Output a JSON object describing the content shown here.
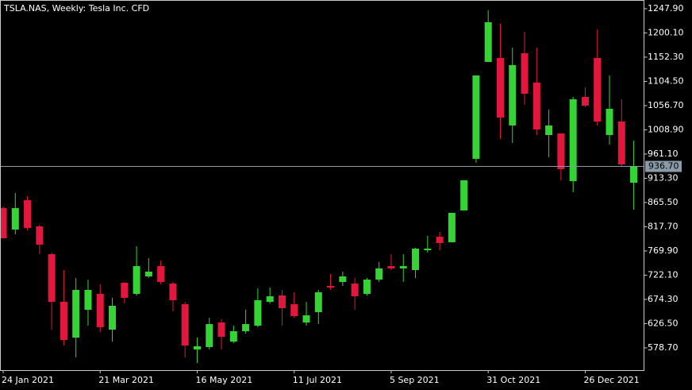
{
  "chart_data": {
    "type": "candlestick",
    "title": "TSLA.NAS, Weekly:  Tesla Inc. CFD",
    "categories": [
      "24 Jan 2021",
      null,
      null,
      null,
      null,
      null,
      null,
      null,
      "21 Mar 2021",
      null,
      null,
      null,
      null,
      null,
      null,
      null,
      "16 May 2021",
      null,
      null,
      null,
      null,
      null,
      null,
      null,
      "11 Jul 2021",
      null,
      null,
      null,
      null,
      null,
      null,
      null,
      "5 Sep 2021",
      null,
      null,
      null,
      null,
      null,
      null,
      null,
      "31 Oct 2021",
      null,
      null,
      null,
      null,
      null,
      null,
      null,
      "26 Dec 2021",
      null,
      null,
      null,
      null
    ],
    "open": [
      854.5,
      812.1,
      870.1,
      818.4,
      763.6,
      669.5,
      599.0,
      653.9,
      685.2,
      614.7,
      707.1,
      685.2,
      719.7,
      740.0,
      705.6,
      664.8,
      575.5,
      580.2,
      628.8,
      591.1,
      611.5,
      622.5,
      669.5,
      682.1,
      664.8,
      628.8,
      649.2,
      700.9,
      708.7,
      705.6,
      685.2,
      713.4,
      740.0,
      735.4,
      732.2,
      771.4,
      798.0,
      787.1,
      849.8,
      951.7,
      1142.9,
      1150.7,
      1017.5,
      1160.1,
      1102.1,
      998.7,
      1001.8,
      907.8,
      1073.9,
      1150.7,
      998.7,
      1025.3,
      904.6
    ],
    "high": [
      857.6,
      884.3,
      878.0,
      821.6,
      766.7,
      732.2,
      716.5,
      713.4,
      704.0,
      677.4,
      708.7,
      779.2,
      755.7,
      751.0,
      708.7,
      669.5,
      599.0,
      638.1,
      635.0,
      622.5,
      653.9,
      696.2,
      697.7,
      693.0,
      688.4,
      669.5,
      693.0,
      724.4,
      729.1,
      716.5,
      716.5,
      747.9,
      763.6,
      763.6,
      776.1,
      799.6,
      807.5,
      845.1,
      909.3,
      1116.2,
      1244.8,
      1218.1,
      1171.1,
      1202.4,
      1171.1,
      1048.8,
      1001.8,
      1073.9,
      1092.7,
      1207.1,
      1116.2,
      1069.2,
      987.7
    ],
    "low": [
      794.9,
      802.8,
      810.6,
      763.6,
      614.7,
      583.3,
      559.8,
      622.5,
      610.0,
      591.1,
      666.4,
      682.0,
      716.5,
      704.0,
      650.7,
      559.8,
      548.8,
      575.5,
      575.5,
      588.0,
      606.8,
      619.4,
      666.4,
      622.5,
      638.1,
      622.5,
      625.6,
      693.0,
      700.9,
      653.9,
      682.0,
      708.7,
      732.2,
      708.7,
      716.5,
      766.7,
      771.4,
      787.1,
      849.8,
      943.8,
      1142.9,
      990.8,
      983.0,
      1058.2,
      998.7,
      954.8,
      909.3,
      885.8,
      1053.5,
      1017.5,
      979.9,
      936.0,
      851.3
    ],
    "close": [
      794.9,
      854.5,
      815.3,
      782.4,
      669.5,
      594.3,
      693.0,
      693.0,
      619.4,
      661.7,
      677.4,
      740.0,
      729.1,
      708.7,
      672.7,
      583.3,
      581.7,
      625.6,
      600.6,
      611.5,
      625.6,
      672.7,
      680.5,
      657.0,
      641.3,
      642.9,
      688.4,
      697.7,
      719.7,
      680.5,
      713.4,
      735.4,
      735.4,
      740.0,
      774.5,
      774.5,
      785.5,
      845.1,
      909.3,
      1116.2,
      1221.2,
      1033.2,
      1136.6,
      1080.2,
      1009.6,
      1017.5,
      931.3,
      1069.2,
      1056.7,
      1025.3,
      1050.4,
      940.7,
      936.7
    ],
    "up_color": "#35d435",
    "down_color": "#e3173e",
    "current_price": {
      "value": 936.7,
      "label": "936.70"
    },
    "ylim": [
      534.7,
      1265.1
    ],
    "yticks": [
      {
        "value": 578.7,
        "label": "578.70"
      },
      {
        "value": 626.5,
        "label": "626.50"
      },
      {
        "value": 674.3,
        "label": "674.30"
      },
      {
        "value": 722.1,
        "label": "722.10"
      },
      {
        "value": 769.9,
        "label": "769.90"
      },
      {
        "value": 817.7,
        "label": "817.70"
      },
      {
        "value": 865.5,
        "label": "865.50"
      },
      {
        "value": 913.3,
        "label": "913.30"
      },
      {
        "value": 961.1,
        "label": "961.10"
      },
      {
        "value": 1008.9,
        "label": "1008.90"
      },
      {
        "value": 1056.7,
        "label": "1056.70"
      },
      {
        "value": 1104.5,
        "label": "1104.50"
      },
      {
        "value": 1152.3,
        "label": "1152.30"
      },
      {
        "value": 1200.1,
        "label": "1200.10"
      },
      {
        "value": 1247.9,
        "label": "1247.90"
      }
    ]
  }
}
